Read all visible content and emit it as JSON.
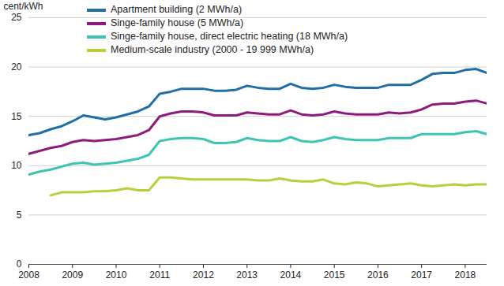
{
  "chart_data": {
    "type": "line",
    "y_label": "cent/kWh",
    "x": [
      2008,
      2008.25,
      2008.5,
      2008.75,
      2009,
      2009.25,
      2009.5,
      2009.75,
      2010,
      2010.25,
      2010.5,
      2010.75,
      2011,
      2011.25,
      2011.5,
      2011.75,
      2012,
      2012.25,
      2012.5,
      2012.75,
      2013,
      2013.25,
      2013.5,
      2013.75,
      2014,
      2014.25,
      2014.5,
      2014.75,
      2015,
      2015.25,
      2015.5,
      2015.75,
      2016,
      2016.25,
      2016.5,
      2016.75,
      2017,
      2017.25,
      2017.5,
      2017.75,
      2018,
      2018.25,
      2018.5
    ],
    "series": [
      {
        "name": "Apartment building (2 MWh/a)",
        "color": "#1f6ea6",
        "values": [
          13.1,
          13.3,
          13.7,
          14.0,
          14.5,
          15.1,
          14.9,
          14.7,
          14.9,
          15.2,
          15.5,
          16.0,
          17.3,
          17.5,
          17.8,
          17.8,
          17.8,
          17.6,
          17.6,
          17.7,
          18.1,
          17.9,
          17.8,
          17.8,
          18.3,
          17.9,
          17.8,
          17.9,
          18.2,
          18.0,
          17.9,
          17.9,
          17.9,
          18.2,
          18.2,
          18.2,
          18.7,
          19.3,
          19.4,
          19.4,
          19.7,
          19.8,
          19.4
        ]
      },
      {
        "name": "Singe-family house (5 MWh/a)",
        "color": "#8e1b7c",
        "values": [
          11.2,
          11.5,
          11.8,
          12.0,
          12.4,
          12.6,
          12.5,
          12.6,
          12.7,
          12.9,
          13.1,
          13.6,
          15.0,
          15.3,
          15.5,
          15.5,
          15.4,
          15.1,
          15.1,
          15.1,
          15.4,
          15.3,
          15.2,
          15.2,
          15.6,
          15.2,
          15.1,
          15.2,
          15.5,
          15.3,
          15.2,
          15.2,
          15.2,
          15.4,
          15.3,
          15.4,
          15.7,
          16.2,
          16.3,
          16.3,
          16.5,
          16.6,
          16.3
        ]
      },
      {
        "name": "Singe-family house, direct electric heating (18 MWh/a)",
        "color": "#3fc4b3",
        "values": [
          9.1,
          9.4,
          9.6,
          9.9,
          10.2,
          10.3,
          10.1,
          10.2,
          10.3,
          10.5,
          10.7,
          11.1,
          12.5,
          12.7,
          12.8,
          12.8,
          12.7,
          12.3,
          12.3,
          12.4,
          12.8,
          12.6,
          12.5,
          12.5,
          12.9,
          12.5,
          12.4,
          12.6,
          12.9,
          12.7,
          12.6,
          12.6,
          12.6,
          12.8,
          12.8,
          12.8,
          13.2,
          13.2,
          13.2,
          13.2,
          13.4,
          13.5,
          13.2
        ]
      },
      {
        "name": "Medium-scale industry (2000 - 19 999 MWh/a)",
        "color": "#b6cf3c",
        "values": [
          null,
          null,
          7.0,
          7.3,
          7.3,
          7.3,
          7.4,
          7.4,
          7.5,
          7.7,
          7.5,
          7.5,
          8.8,
          8.8,
          8.7,
          8.6,
          8.6,
          8.6,
          8.6,
          8.6,
          8.6,
          8.5,
          8.5,
          8.7,
          8.5,
          8.4,
          8.4,
          8.6,
          8.2,
          8.1,
          8.3,
          8.2,
          7.9,
          8.0,
          8.1,
          8.2,
          8.0,
          7.9,
          8.0,
          8.1,
          8.0,
          8.1,
          8.1
        ]
      }
    ],
    "xlim": [
      2008,
      2018.5
    ],
    "xticks": [
      2008,
      2009,
      2010,
      2011,
      2012,
      2013,
      2014,
      2015,
      2016,
      2017,
      2018
    ],
    "ylim": [
      0,
      25
    ],
    "yticks": [
      0,
      5,
      10,
      15,
      20,
      25
    ],
    "grid": true,
    "legend": "top-left"
  }
}
